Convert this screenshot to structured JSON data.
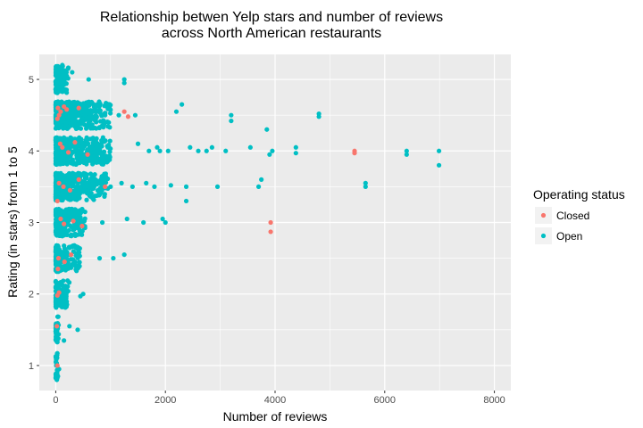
{
  "chart_data": {
    "type": "scatter",
    "title": [
      "Relationship betwen Yelp stars and number of reviews",
      "across North American restaurants"
    ],
    "xlabel": "Number of reviews",
    "ylabel": "Rating (in stars) from 1 to 5",
    "xlim": [
      -300,
      8300
    ],
    "ylim": [
      0.65,
      5.35
    ],
    "xticks": [
      0,
      2000,
      4000,
      6000,
      8000
    ],
    "yticks": [
      1,
      2,
      3,
      4,
      5
    ],
    "grid": true,
    "jittered": true,
    "legend": {
      "title": "Operating status",
      "placement": "right"
    },
    "colors": {
      "Closed": "#f8766d",
      "Open": "#00bfc4",
      "panel": "#ebebeb",
      "grid": "#ffffff"
    },
    "series": [
      {
        "name": "Closed",
        "points": [
          [
            5450,
            4.0
          ],
          [
            5450,
            3.97
          ],
          [
            3920,
            3.0
          ],
          [
            3920,
            2.87
          ],
          [
            40,
            4.6
          ],
          [
            60,
            4.5
          ],
          [
            90,
            4.55
          ],
          [
            150,
            4.62
          ],
          [
            30,
            4.45
          ],
          [
            200,
            4.58
          ],
          [
            420,
            4.6
          ],
          [
            1250,
            4.55
          ],
          [
            1320,
            4.48
          ],
          [
            80,
            4.1
          ],
          [
            120,
            4.05
          ],
          [
            230,
            3.98
          ],
          [
            350,
            4.12
          ],
          [
            580,
            3.95
          ],
          [
            60,
            3.55
          ],
          [
            140,
            3.5
          ],
          [
            260,
            3.45
          ],
          [
            900,
            3.5
          ],
          [
            420,
            3.6
          ],
          [
            30,
            3.3
          ],
          [
            90,
            3.05
          ],
          [
            150,
            2.98
          ],
          [
            320,
            3.02
          ],
          [
            480,
            2.95
          ],
          [
            50,
            2.5
          ],
          [
            160,
            2.45
          ],
          [
            280,
            2.55
          ],
          [
            40,
            2.35
          ],
          [
            30,
            1.98
          ],
          [
            60,
            2.02
          ],
          [
            20,
            1.55
          ],
          [
            30,
            1.0
          ]
        ]
      },
      {
        "name": "Open",
        "points": [
          [
            6990,
            4.0
          ],
          [
            6990,
            3.8
          ],
          [
            6400,
            4.0
          ],
          [
            6400,
            3.95
          ],
          [
            5650,
            3.55
          ],
          [
            5650,
            3.5
          ],
          [
            4800,
            4.52
          ],
          [
            4800,
            4.48
          ],
          [
            4380,
            4.05
          ],
          [
            4380,
            3.97
          ],
          [
            3950,
            4.0
          ],
          [
            3900,
            3.95
          ],
          [
            3850,
            4.3
          ],
          [
            3750,
            3.6
          ],
          [
            3700,
            3.5
          ],
          [
            3550,
            4.05
          ],
          [
            3200,
            4.5
          ],
          [
            3200,
            4.42
          ],
          [
            3100,
            4.0
          ],
          [
            2950,
            3.5
          ],
          [
            2850,
            4.05
          ],
          [
            2750,
            4.0
          ],
          [
            2600,
            4.0
          ],
          [
            2450,
            4.05
          ],
          [
            2380,
            3.5
          ],
          [
            2380,
            3.3
          ],
          [
            2300,
            4.65
          ],
          [
            2200,
            4.55
          ],
          [
            2100,
            3.52
          ],
          [
            2050,
            4.0
          ],
          [
            2000,
            3.0
          ],
          [
            1950,
            3.05
          ],
          [
            1900,
            4.0
          ],
          [
            1850,
            4.05
          ],
          [
            1800,
            3.5
          ],
          [
            1700,
            4.0
          ],
          [
            1650,
            3.55
          ],
          [
            1600,
            3.0
          ],
          [
            1500,
            4.1
          ],
          [
            1450,
            4.5
          ],
          [
            1400,
            3.5
          ],
          [
            1300,
            3.05
          ],
          [
            1250,
            5.0
          ],
          [
            1250,
            4.95
          ],
          [
            1250,
            2.55
          ],
          [
            1200,
            3.55
          ],
          [
            1150,
            4.5
          ],
          [
            1050,
            2.5
          ],
          [
            1000,
            3.5
          ],
          [
            950,
            4.05
          ],
          [
            900,
            4.5
          ],
          [
            850,
            3.0
          ],
          [
            800,
            2.5
          ],
          [
            750,
            4.05
          ],
          [
            700,
            3.5
          ],
          [
            600,
            5.0
          ],
          [
            550,
            4.52
          ],
          [
            500,
            2.0
          ],
          [
            450,
            1.97
          ],
          [
            400,
            1.5
          ],
          [
            350,
            2.45
          ],
          [
            300,
            5.1
          ],
          [
            250,
            1.55
          ],
          [
            200,
            5.05
          ],
          [
            150,
            1.35
          ],
          [
            120,
            5.2
          ],
          [
            80,
            5.15
          ],
          [
            60,
            0.95
          ],
          [
            40,
            0.85
          ],
          [
            20,
            0.8
          ]
        ]
      }
    ]
  }
}
